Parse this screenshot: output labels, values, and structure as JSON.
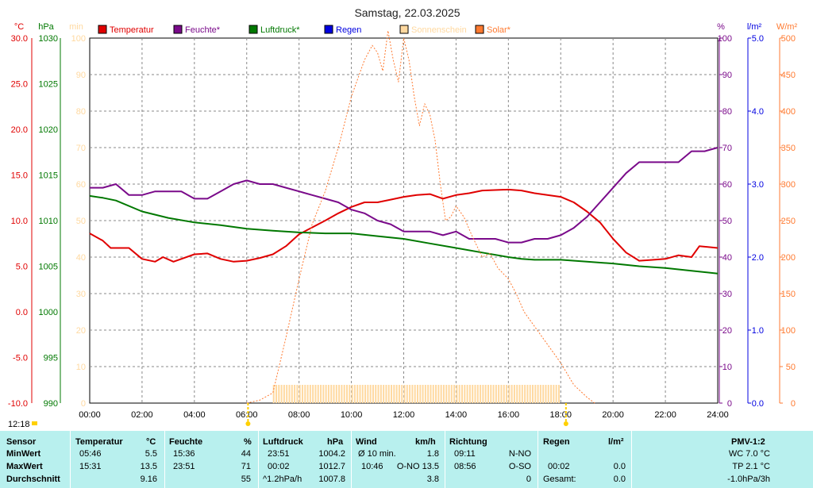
{
  "title": "Samstag, 22.03.2025",
  "timestamp": "12:18",
  "colors": {
    "temperature": "#e00000",
    "humidity": "#7a0a8a",
    "pressure": "#007800",
    "rain": "#0000e0",
    "sunshine": "#ffd9a0",
    "solar": "#ff7a30",
    "table_bg": "#b8f0ee"
  },
  "axes": {
    "temp_unit": "°C",
    "hpa_unit": "hPa",
    "min_unit": "min",
    "pct_unit": "%",
    "rain_unit": "l/m²",
    "solar_unit": "W/m²",
    "temp_ticks": [
      "30.0",
      "25.0",
      "20.0",
      "15.0",
      "10.0",
      "5.0",
      "0.0",
      "-5.0",
      "-10.0"
    ],
    "hpa_ticks": [
      "1030",
      "1025",
      "1020",
      "1015",
      "1010",
      "1005",
      "1000",
      "995",
      "990"
    ],
    "min_ticks": [
      "100",
      "90",
      "80",
      "70",
      "60",
      "50",
      "40",
      "30",
      "20",
      "10",
      "0"
    ],
    "pct_ticks": [
      "100",
      "90",
      "80",
      "70",
      "60",
      "50",
      "40",
      "30",
      "20",
      "10",
      "0"
    ],
    "rain_ticks": [
      "5.0",
      "4.0",
      "3.0",
      "2.0",
      "1.0",
      "0.0"
    ],
    "solar_ticks": [
      "500",
      "450",
      "400",
      "350",
      "300",
      "250",
      "200",
      "150",
      "100",
      "50",
      "0"
    ],
    "time_ticks": [
      "00:00",
      "02:00",
      "04:00",
      "06:00",
      "08:00",
      "10:00",
      "12:00",
      "14:00",
      "16:00",
      "18:00",
      "20:00",
      "22:00",
      "24:00"
    ]
  },
  "legend": [
    {
      "label": "Temperatur",
      "color": "#e00000"
    },
    {
      "label": "Feuchte*",
      "color": "#7a0a8a"
    },
    {
      "label": "Luftdruck*",
      "color": "#007800"
    },
    {
      "label": "Regen",
      "color": "#0000e0"
    },
    {
      "label": "Sonnenschein",
      "color": "#ffd9a0"
    },
    {
      "label": "Solar*",
      "color": "#ff7a30"
    }
  ],
  "chart_data": {
    "type": "line",
    "title": "Samstag, 22.03.2025",
    "x_unit": "hours",
    "xlim": [
      0,
      24
    ],
    "grid": true,
    "legend_position": "top",
    "series": [
      {
        "name": "Temperatur",
        "unit": "°C",
        "ylim": [
          -10,
          30
        ],
        "points": [
          [
            0,
            8.6
          ],
          [
            0.5,
            7.8
          ],
          [
            0.8,
            7.0
          ],
          [
            1.5,
            7.0
          ],
          [
            2.0,
            5.8
          ],
          [
            2.5,
            5.5
          ],
          [
            2.8,
            6.0
          ],
          [
            3.2,
            5.5
          ],
          [
            3.5,
            5.8
          ],
          [
            4.0,
            6.3
          ],
          [
            4.5,
            6.4
          ],
          [
            5.0,
            5.8
          ],
          [
            5.5,
            5.5
          ],
          [
            6.0,
            5.6
          ],
          [
            6.5,
            5.9
          ],
          [
            7.0,
            6.3
          ],
          [
            7.5,
            7.2
          ],
          [
            8.0,
            8.5
          ],
          [
            9.0,
            10.0
          ],
          [
            9.5,
            10.8
          ],
          [
            10.0,
            11.5
          ],
          [
            10.5,
            12.0
          ],
          [
            11.0,
            12.0
          ],
          [
            11.5,
            12.3
          ],
          [
            12.0,
            12.6
          ],
          [
            12.5,
            12.8
          ],
          [
            13.0,
            12.9
          ],
          [
            13.5,
            12.4
          ],
          [
            14.0,
            12.8
          ],
          [
            14.5,
            13.0
          ],
          [
            15.0,
            13.3
          ],
          [
            16.0,
            13.4
          ],
          [
            16.5,
            13.3
          ],
          [
            17.0,
            13.0
          ],
          [
            18.0,
            12.6
          ],
          [
            18.5,
            12.0
          ],
          [
            19.0,
            11.0
          ],
          [
            19.5,
            9.8
          ],
          [
            20.0,
            8.0
          ],
          [
            20.5,
            6.5
          ],
          [
            21.0,
            5.6
          ],
          [
            21.5,
            5.7
          ],
          [
            22.0,
            5.8
          ],
          [
            22.5,
            6.2
          ],
          [
            23.0,
            6.0
          ],
          [
            23.3,
            7.2
          ],
          [
            24,
            7.0
          ]
        ]
      },
      {
        "name": "Feuchte*",
        "unit": "%",
        "ylim": [
          0,
          100
        ],
        "points": [
          [
            0,
            59
          ],
          [
            0.5,
            59
          ],
          [
            1.0,
            60
          ],
          [
            1.5,
            57
          ],
          [
            2.0,
            57
          ],
          [
            2.5,
            58
          ],
          [
            3.0,
            58
          ],
          [
            3.5,
            58
          ],
          [
            4.0,
            56
          ],
          [
            4.5,
            56
          ],
          [
            5.0,
            58
          ],
          [
            5.5,
            60
          ],
          [
            6.0,
            61
          ],
          [
            6.5,
            60
          ],
          [
            7.0,
            60
          ],
          [
            7.5,
            59
          ],
          [
            8.0,
            58
          ],
          [
            8.5,
            57
          ],
          [
            9.0,
            56
          ],
          [
            9.5,
            55
          ],
          [
            10.0,
            53
          ],
          [
            10.5,
            52
          ],
          [
            11.0,
            50
          ],
          [
            11.5,
            49
          ],
          [
            12.0,
            47
          ],
          [
            12.5,
            47
          ],
          [
            13.0,
            47
          ],
          [
            13.5,
            46
          ],
          [
            14.0,
            47
          ],
          [
            14.5,
            45
          ],
          [
            15.0,
            45
          ],
          [
            15.5,
            45
          ],
          [
            16.0,
            44
          ],
          [
            16.5,
            44
          ],
          [
            17.0,
            45
          ],
          [
            17.5,
            45
          ],
          [
            18.0,
            46
          ],
          [
            18.5,
            48
          ],
          [
            19.0,
            51
          ],
          [
            19.5,
            55
          ],
          [
            20.0,
            59
          ],
          [
            20.5,
            63
          ],
          [
            21.0,
            66
          ],
          [
            21.5,
            66
          ],
          [
            22.0,
            66
          ],
          [
            22.5,
            66
          ],
          [
            23.0,
            69
          ],
          [
            23.5,
            69
          ],
          [
            24,
            70
          ]
        ]
      },
      {
        "name": "Luftdruck*",
        "unit": "hPa",
        "ylim": [
          990,
          1030
        ],
        "points": [
          [
            0,
            1012.7
          ],
          [
            0.5,
            1012.5
          ],
          [
            1.0,
            1012.2
          ],
          [
            2.0,
            1011.0
          ],
          [
            3.0,
            1010.3
          ],
          [
            4.0,
            1009.8
          ],
          [
            5.0,
            1009.5
          ],
          [
            6.0,
            1009.1
          ],
          [
            7.0,
            1008.9
          ],
          [
            8.0,
            1008.7
          ],
          [
            9.0,
            1008.6
          ],
          [
            10.0,
            1008.6
          ],
          [
            11.0,
            1008.3
          ],
          [
            12.0,
            1008.0
          ],
          [
            13.0,
            1007.5
          ],
          [
            14.0,
            1007.0
          ],
          [
            15.0,
            1006.5
          ],
          [
            16.0,
            1006.0
          ],
          [
            16.5,
            1005.8
          ],
          [
            17.0,
            1005.7
          ],
          [
            18.0,
            1005.7
          ],
          [
            19.0,
            1005.5
          ],
          [
            20.0,
            1005.3
          ],
          [
            21.0,
            1005.0
          ],
          [
            22.0,
            1004.8
          ],
          [
            23.0,
            1004.5
          ],
          [
            24,
            1004.2
          ]
        ]
      },
      {
        "name": "Solar*",
        "unit": "W/m²",
        "ylim": [
          0,
          500
        ],
        "points": [
          [
            6.0,
            0
          ],
          [
            6.5,
            4
          ],
          [
            7.0,
            14
          ],
          [
            7.5,
            90
          ],
          [
            8.0,
            170
          ],
          [
            8.5,
            245
          ],
          [
            9.0,
            290
          ],
          [
            9.5,
            350
          ],
          [
            10.0,
            420
          ],
          [
            10.5,
            470
          ],
          [
            10.8,
            490
          ],
          [
            11.0,
            480
          ],
          [
            11.2,
            455
          ],
          [
            11.4,
            510
          ],
          [
            11.6,
            470
          ],
          [
            11.8,
            440
          ],
          [
            12.0,
            500
          ],
          [
            12.2,
            470
          ],
          [
            12.4,
            420
          ],
          [
            12.6,
            380
          ],
          [
            12.8,
            410
          ],
          [
            13.0,
            395
          ],
          [
            13.2,
            360
          ],
          [
            13.4,
            300
          ],
          [
            13.6,
            250
          ],
          [
            13.8,
            255
          ],
          [
            14.0,
            270
          ],
          [
            14.3,
            255
          ],
          [
            14.6,
            230
          ],
          [
            15.0,
            200
          ],
          [
            15.3,
            205
          ],
          [
            15.6,
            185
          ],
          [
            16.0,
            170
          ],
          [
            16.3,
            150
          ],
          [
            16.6,
            125
          ],
          [
            17.0,
            105
          ],
          [
            17.5,
            80
          ],
          [
            18.0,
            55
          ],
          [
            18.5,
            25
          ],
          [
            19.0,
            8
          ],
          [
            19.3,
            0
          ]
        ]
      },
      {
        "name": "Sonnenschein",
        "unit": "min",
        "ylim": [
          0,
          100
        ],
        "from": 7.0,
        "to": 17.9,
        "level": 5
      }
    ]
  },
  "table": {
    "headers": {
      "sensor": "Sensor",
      "temp": "Temperatur",
      "temp_unit": "°C",
      "hum": "Feuchte",
      "hum_unit": "%",
      "press": "Luftdruck",
      "press_unit": "hPa",
      "wind": "Wind",
      "wind_unit": "km/h",
      "dir": "Richtung",
      "rain": "Regen",
      "rain_unit": "l/m²",
      "pmv": "PMV-1:2"
    },
    "rows": [
      {
        "label": "MinWert",
        "temp_time": "05:46",
        "temp_val": "5.5",
        "hum_time": "15:36",
        "hum_val": "44",
        "press_time": "23:51",
        "press_val": "1004.2",
        "wind_time": "Ø 10 min.",
        "wind_val": "1.8",
        "dir_time": "09:11",
        "dir_val": "N-NO",
        "rain_time": "",
        "rain_val": "",
        "pmv": "WC 7.0 °C"
      },
      {
        "label": "MaxWert",
        "temp_time": "15:31",
        "temp_val": "13.5",
        "hum_time": "23:51",
        "hum_val": "71",
        "press_time": "00:02",
        "press_val": "1012.7",
        "wind_time": "10:46",
        "wind_val": "O-NO 13.5",
        "dir_time": "08:56",
        "dir_val": "O-SO",
        "rain_time": "00:02",
        "rain_val": "0.0",
        "pmv": "TP 2.1 °C"
      },
      {
        "label": "Durchschnitt",
        "temp_time": "",
        "temp_val": "9.16",
        "hum_time": "",
        "hum_val": "55",
        "press_time": "^1.2hPa/h",
        "press_val": "1007.8",
        "wind_time": "",
        "wind_val": "3.8",
        "dir_time": "",
        "dir_val": "0",
        "rain_time": "Gesamt:",
        "rain_val": "0.0",
        "pmv": "-1.0hPa/3h"
      }
    ]
  }
}
